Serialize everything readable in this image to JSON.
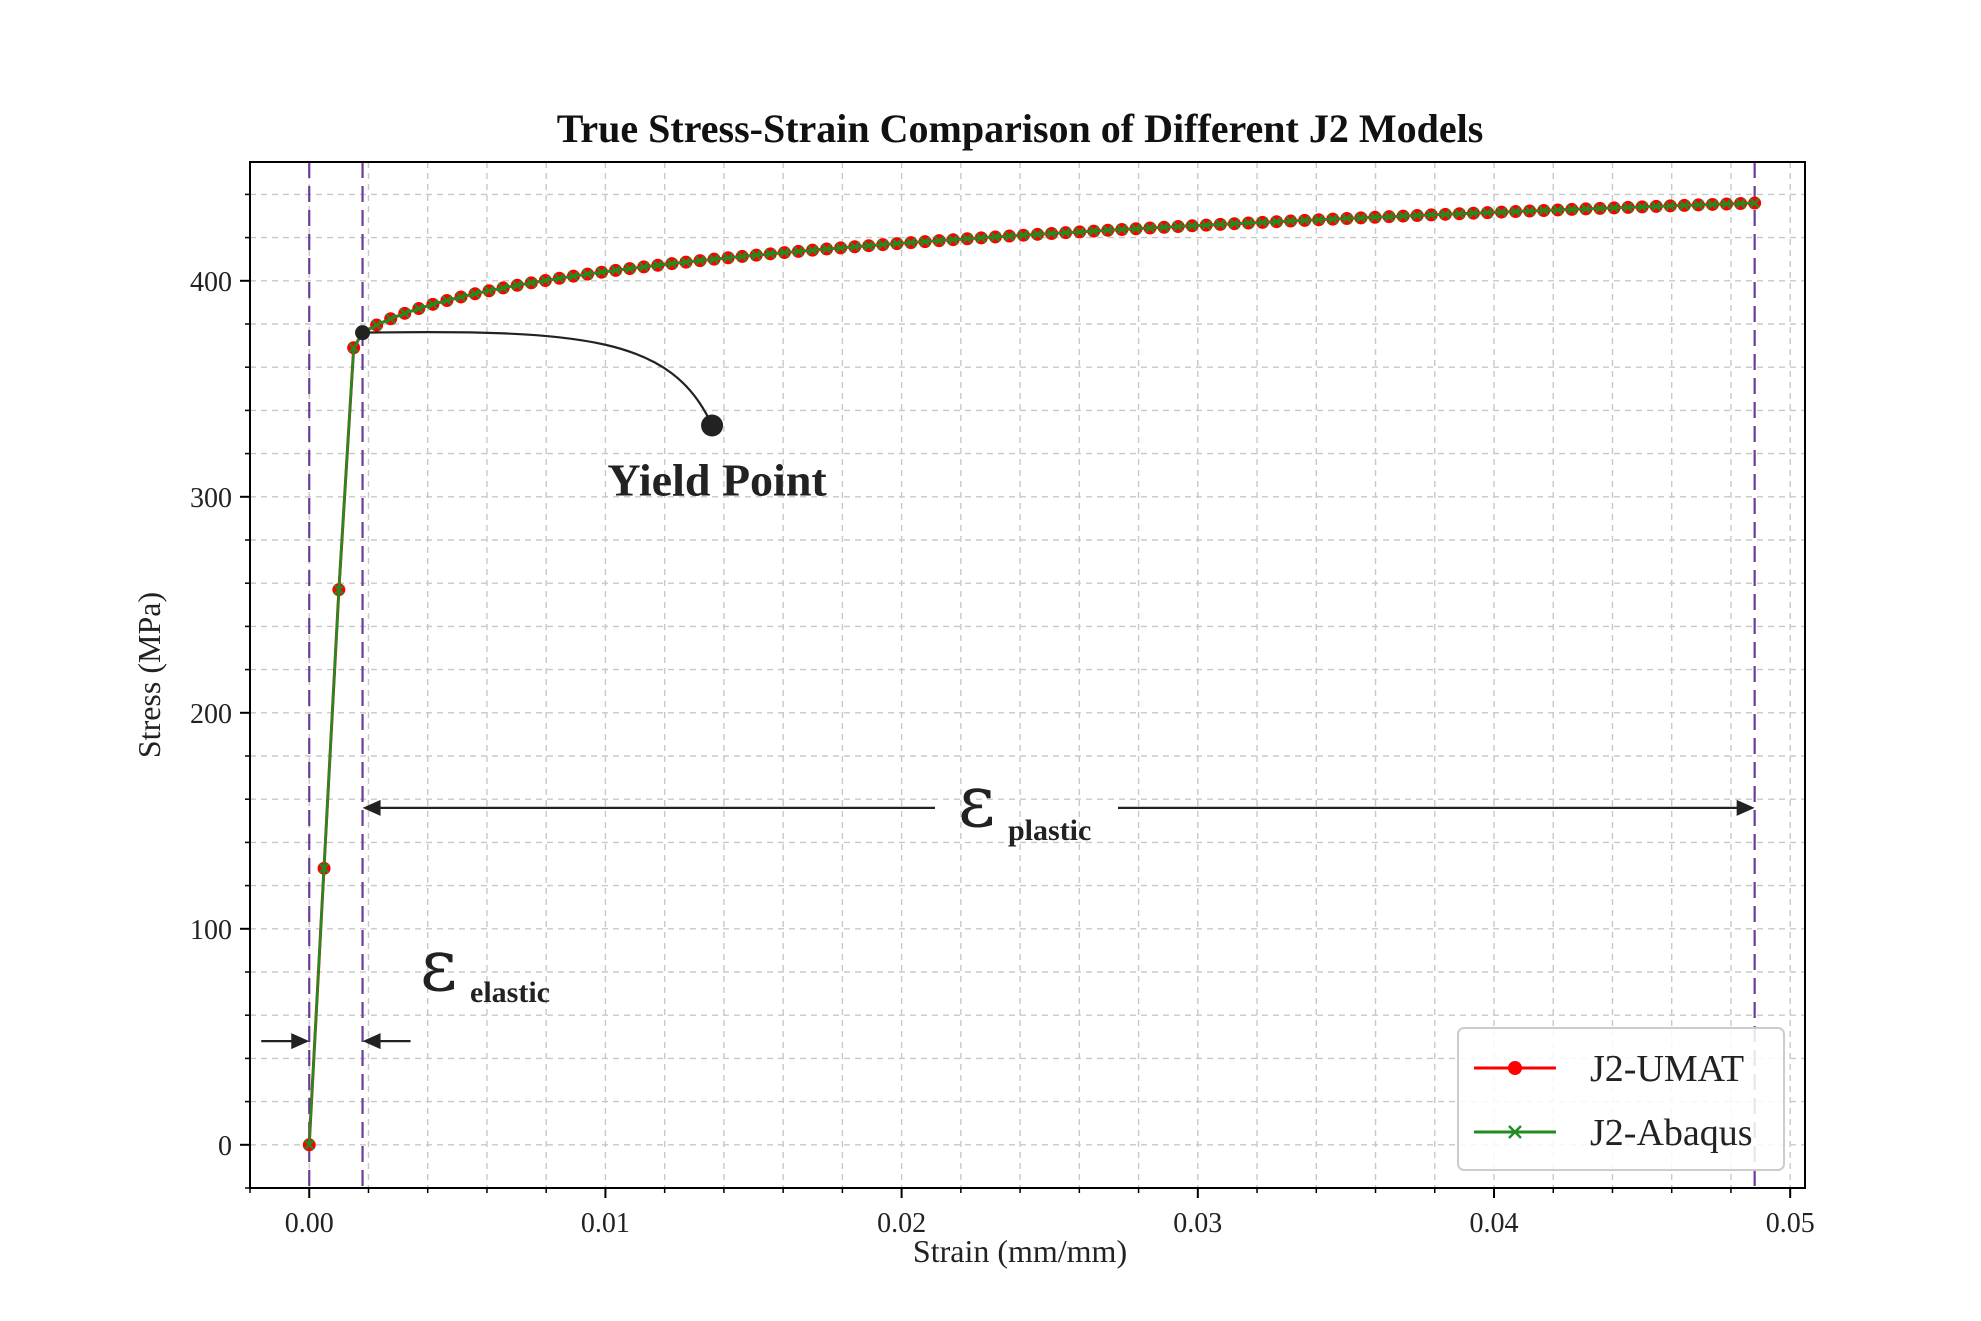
{
  "chart_data": {
    "type": "line",
    "title": "True Stress-Strain Comparison of Different J2 Models",
    "xlabel": "Strain (mm/mm)",
    "ylabel": "Stress (MPa)",
    "xlim": [
      -0.002,
      0.0505
    ],
    "ylim": [
      -20,
      455
    ],
    "xticks": [
      0.0,
      0.01,
      0.02,
      0.03,
      0.04,
      0.05
    ],
    "xtick_labels": [
      "0.00",
      "0.01",
      "0.02",
      "0.03",
      "0.04",
      "0.05"
    ],
    "yticks": [
      0,
      100,
      200,
      300,
      400
    ],
    "ytick_labels": [
      "0",
      "100",
      "200",
      "300",
      "400"
    ],
    "grid": true,
    "legend_position": "bottom-right",
    "series": [
      {
        "name": "J2-UMAT",
        "color": "#ff0000",
        "marker": "circle",
        "model": "elastic linear to yield, then power-law hardening",
        "elastic_points": {
          "x": [
            0.0,
            0.0005,
            0.001,
            0.0015
          ],
          "y": [
            0,
            128,
            257,
            369
          ]
        },
        "plastic": {
          "x_start": 0.0018,
          "x_end": 0.0488,
          "point_count": 100,
          "sample_x": [
            0.0018,
            0.0025,
            0.005,
            0.01,
            0.015,
            0.02,
            0.025,
            0.03,
            0.035,
            0.04,
            0.045,
            0.0488
          ],
          "sample_y": [
            376,
            384,
            390,
            398,
            405,
            411,
            416,
            421,
            425,
            429,
            432,
            436
          ]
        }
      },
      {
        "name": "J2-Abaqus",
        "color": "#228b22",
        "marker": "x",
        "elastic_points": {
          "x": [
            0.0,
            0.0005,
            0.001,
            0.0015
          ],
          "y": [
            0,
            128,
            257,
            369
          ]
        },
        "plastic": {
          "x_start": 0.0018,
          "x_end": 0.0488,
          "point_count": 100,
          "sample_x": [
            0.0018,
            0.0025,
            0.005,
            0.01,
            0.015,
            0.02,
            0.025,
            0.03,
            0.035,
            0.04,
            0.045,
            0.0488
          ],
          "sample_y": [
            376,
            384,
            390,
            398,
            405,
            411,
            416,
            421,
            425,
            429,
            432,
            436
          ]
        }
      }
    ],
    "vlines": [
      {
        "x": 0.0,
        "color": "#6a3d9a",
        "style": "dashed"
      },
      {
        "x": 0.0018,
        "color": "#6a3d9a",
        "style": "dashed"
      },
      {
        "x": 0.0488,
        "color": "#6a3d9a",
        "style": "dashed"
      }
    ],
    "annotations": {
      "yield_point": {
        "label": "Yield Point",
        "point": [
          0.0018,
          376
        ],
        "label_anchor": [
          0.0136,
          333
        ]
      },
      "elastic_strain": {
        "symbol": "ε",
        "subscript": "elastic",
        "x_from": 0.0,
        "x_to": 0.0018,
        "y": 48
      },
      "plastic_strain": {
        "symbol": "ε",
        "subscript": "plastic",
        "x_from": 0.0018,
        "x_to": 0.0488,
        "y": 156
      }
    }
  }
}
